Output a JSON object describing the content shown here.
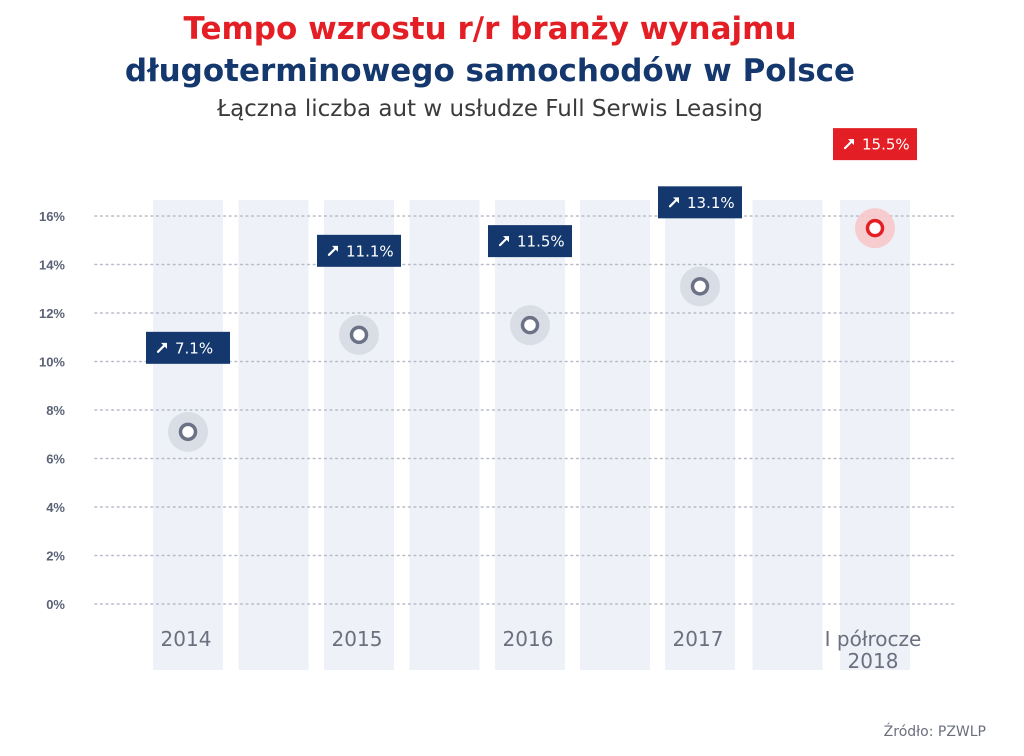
{
  "header": {
    "title_line1": "Tempo wzrostu r/r branży wynajmu",
    "title_line2": "długoterminowego samochodów w Polsce",
    "subtitle": "Łączna liczba aut w usłudze Full Serwis Leasing"
  },
  "footer": {
    "source": "Źródło: PZWLP"
  },
  "colors": {
    "accent_red": "#e31e24",
    "navy": "#14386e",
    "stem": "#9aa1b5",
    "band": "#eef1f7",
    "axis_text": "#5a6275"
  },
  "icons": {
    "label_arrow": "arrow-up-right-icon"
  },
  "chart_data": {
    "type": "lollipop",
    "categories": [
      "2014",
      "2015",
      "2016",
      "2017",
      "I półrocze\n2018"
    ],
    "values": [
      7.1,
      11.1,
      11.5,
      13.1,
      15.5
    ],
    "value_labels": [
      "7.1%",
      "11.1%",
      "11.5%",
      "13.1%",
      "15.5%"
    ],
    "highlight_index": 4,
    "y_ticks": [
      "0%",
      "2%",
      "4%",
      "6%",
      "8%",
      "10%",
      "12%",
      "14%",
      "16%"
    ],
    "ylim": [
      0,
      16
    ],
    "grid": true,
    "xlabel": "",
    "ylabel": ""
  }
}
